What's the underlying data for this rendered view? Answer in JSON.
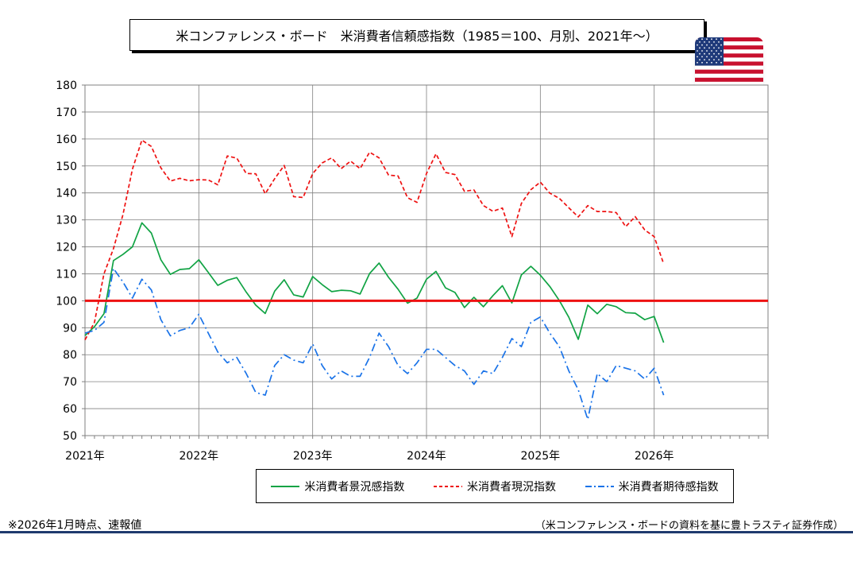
{
  "title": "米コンファレンス・ボード　米消費者信頼感指数（1985＝100、月別、2021年～）",
  "flag": {
    "name": "us-flag",
    "colors": {
      "red": "#c8102e",
      "white": "#ffffff",
      "blue": "#1f3a7a"
    }
  },
  "footnote": "※2026年1月時点、速報値",
  "source": "（米コンファレンス・ボードの資料を基に豊トラスティ証券作成）",
  "chart_data": {
    "type": "line",
    "title": "",
    "xlabel": "",
    "ylabel": "",
    "ylim": [
      50,
      180
    ],
    "yticks": [
      "50",
      "60",
      "70",
      "80",
      "90",
      "100",
      "110",
      "120",
      "130",
      "140",
      "150",
      "160",
      "170",
      "180"
    ],
    "xlim_months": [
      0,
      72
    ],
    "year_labels": [
      {
        "label": "2021年",
        "month": 0
      },
      {
        "label": "2022年",
        "month": 12
      },
      {
        "label": "2023年",
        "month": 24
      },
      {
        "label": "2024年",
        "month": 36
      },
      {
        "label": "2025年",
        "month": 48
      },
      {
        "label": "2026年",
        "month": 60
      }
    ],
    "grid": true,
    "reference_line": {
      "value": 100,
      "color": "#ee1111"
    },
    "series": [
      {
        "name": "米消費者景況感指数",
        "color": "#11a344",
        "style": "solid",
        "values": [
          87.1,
          90.4,
          95.2,
          114.9,
          117.2,
          120.0,
          128.9,
          125.1,
          115.2,
          109.8,
          111.6,
          111.9,
          115.2,
          110.5,
          105.7,
          107.6,
          108.6,
          103.2,
          98.4,
          95.3,
          103.6,
          107.8,
          102.2,
          101.4,
          109.0,
          106.0,
          103.4,
          103.9,
          103.7,
          102.5,
          110.1,
          114.0,
          108.7,
          104.3,
          99.1,
          101.0,
          108.0,
          110.9,
          104.8,
          103.1,
          97.5,
          101.3,
          97.8,
          101.9,
          105.6,
          99.2,
          109.6,
          112.8,
          109.5,
          105.3,
          100.1,
          93.9,
          85.7,
          98.4,
          95.2,
          98.7,
          97.8,
          95.6,
          95.4,
          93.0,
          94.2,
          84.5
        ]
      },
      {
        "name": "米消費者現況指数",
        "color": "#ee1111",
        "style": "dashed",
        "values": [
          85.5,
          92.0,
          110.0,
          119.3,
          131.9,
          148.8,
          159.6,
          157.2,
          149.3,
          144.4,
          145.4,
          144.5,
          144.9,
          144.8,
          143.0,
          153.7,
          152.9,
          147.2,
          147.1,
          139.7,
          145.3,
          150.2,
          138.6,
          138.3,
          147.2,
          151.1,
          153.0,
          149.0,
          151.8,
          149.0,
          155.1,
          153.0,
          146.6,
          146.3,
          138.2,
          136.5,
          147.2,
          154.5,
          147.6,
          146.8,
          140.6,
          141.1,
          135.3,
          133.2,
          134.4,
          123.8,
          136.1,
          141.2,
          144.0,
          139.9,
          138.0,
          134.5,
          131.1,
          135.3,
          133.1,
          133.1,
          132.7,
          127.5,
          131.2,
          126.3,
          123.8,
          113.7
        ]
      },
      {
        "name": "米消費者期待感指数",
        "color": "#1a73e8",
        "style": "dashdot",
        "values": [
          88.0,
          89.0,
          92.0,
          112.0,
          107.0,
          101.0,
          108.0,
          104.0,
          93.0,
          87.0,
          89.0,
          90.0,
          95.0,
          88.0,
          81.0,
          77.0,
          79.0,
          73.0,
          66.0,
          65.0,
          76.0,
          80.0,
          78.0,
          77.0,
          84.0,
          76.0,
          71.0,
          74.0,
          72.0,
          72.0,
          79.0,
          88.0,
          83.0,
          76.0,
          73.0,
          77.0,
          82.0,
          82.0,
          79.0,
          76.0,
          74.0,
          69.0,
          74.0,
          73.0,
          79.0,
          86.0,
          83.0,
          92.0,
          94.0,
          88.0,
          83.0,
          74.0,
          67.0,
          56.0,
          73.0,
          70.0,
          76.0,
          75.0,
          74.0,
          71.0,
          75.0,
          65.0
        ]
      }
    ]
  }
}
